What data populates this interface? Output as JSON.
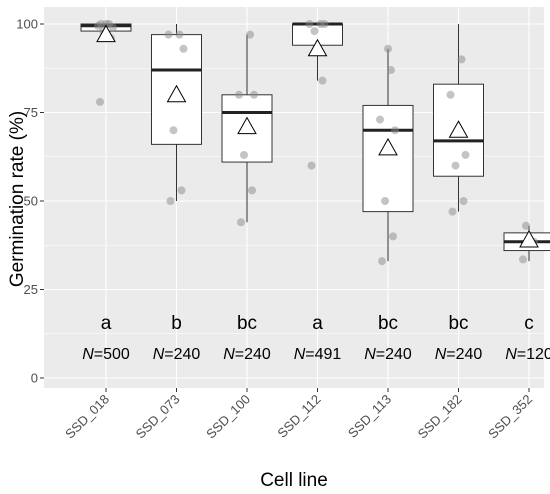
{
  "chart_data": {
    "type": "box",
    "xlabel": "Cell line",
    "ylabel": "Germination rate (%)",
    "ylim": [
      0,
      100
    ],
    "yticks": [
      "0",
      "25",
      "50",
      "75",
      "100"
    ],
    "grid": true,
    "colors": {
      "panel": "#ebebeb",
      "grid": "#ffffff",
      "box_fill": "#ffffff",
      "box_line": "#333333",
      "point": "#8a8a8a",
      "mean_marker": "#ffffff"
    },
    "groups": [
      {
        "category": "SSD_018",
        "letter": "a",
        "n_prefix": "N",
        "n_value": "=500",
        "q1": 98,
        "median": 99.5,
        "q3": 100,
        "whisker_low": 96,
        "whisker_high": 100,
        "mean": 97,
        "points": [
          78,
          96,
          98,
          99,
          99.5,
          100,
          100,
          100
        ]
      },
      {
        "category": "SSD_073",
        "letter": "b",
        "n_prefix": "N",
        "n_value": "=240",
        "q1": 66,
        "median": 87,
        "q3": 97,
        "whisker_low": 50,
        "whisker_high": 100,
        "mean": 80,
        "points": [
          50,
          53,
          70,
          93,
          97,
          97
        ]
      },
      {
        "category": "SSD_100",
        "letter": "bc",
        "n_prefix": "N",
        "n_value": "=240",
        "q1": 61,
        "median": 75,
        "q3": 80,
        "whisker_low": 44,
        "whisker_high": 97,
        "mean": 71,
        "points": [
          44,
          53,
          63,
          80,
          80,
          97
        ]
      },
      {
        "category": "SSD_112",
        "letter": "a",
        "n_prefix": "N",
        "n_value": "=491",
        "q1": 94,
        "median": 100,
        "q3": 100,
        "whisker_low": 84,
        "whisker_high": 100,
        "mean": 93,
        "points": [
          60,
          84,
          98,
          100,
          100,
          100
        ]
      },
      {
        "category": "SSD_113",
        "letter": "bc",
        "n_prefix": "N",
        "n_value": "=240",
        "q1": 47,
        "median": 70,
        "q3": 77,
        "whisker_low": 33,
        "whisker_high": 93,
        "mean": 65,
        "points": [
          33,
          40,
          50,
          70,
          73,
          87,
          93
        ]
      },
      {
        "category": "SSD_182",
        "letter": "bc",
        "n_prefix": "N",
        "n_value": "=240",
        "q1": 57,
        "median": 67,
        "q3": 83,
        "whisker_low": 47,
        "whisker_high": 100,
        "mean": 70,
        "points": [
          47,
          50,
          60,
          63,
          80,
          90
        ]
      },
      {
        "category": "SSD_352",
        "letter": "c",
        "n_prefix": "N",
        "n_value": "=120",
        "q1": 36,
        "median": 38.5,
        "q3": 41,
        "whisker_low": 33,
        "whisker_high": 43,
        "mean": 39,
        "points": [
          33.5,
          38.5,
          43
        ]
      }
    ]
  }
}
